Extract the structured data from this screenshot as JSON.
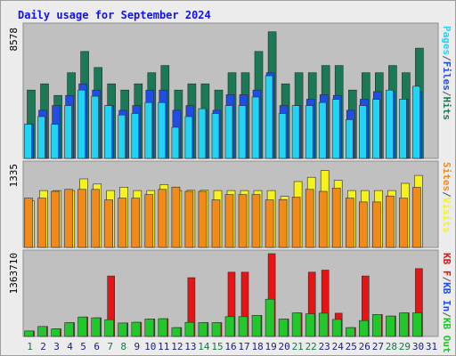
{
  "chart_data": [
    {
      "type": "bar",
      "title": "Daily usage for September 2024",
      "ylabel_parts": [
        "Pages",
        "/",
        "Files",
        "/",
        "Hits"
      ],
      "ymax_label": "8578",
      "ylim": [
        0,
        8578
      ],
      "categories": [
        "1",
        "2",
        "3",
        "4",
        "5",
        "6",
        "7",
        "8",
        "9",
        "10",
        "11",
        "12",
        "13",
        "14",
        "15",
        "16",
        "17",
        "18",
        "19",
        "20",
        "21",
        "22",
        "23",
        "24",
        "25",
        "26",
        "27",
        "28",
        "29",
        "30",
        "31"
      ],
      "series": [
        {
          "name": "Hits",
          "values": [
            4452,
            4858,
            4102,
            5584,
            6969,
            5922,
            4858,
            4452,
            4858,
            5584,
            6053,
            4452,
            4858,
            4858,
            4452,
            5584,
            5584,
            6969,
            8250,
            4858,
            5584,
            5584,
            6053,
            6053,
            4452,
            5584,
            5584,
            6053,
            5584,
            7183,
            0
          ]
        },
        {
          "name": "Files",
          "values": [
            2228,
            3135,
            3441,
            4102,
            4858,
            4452,
            3441,
            3135,
            3441,
            4452,
            4452,
            3135,
            3441,
            3135,
            3135,
            4152,
            4152,
            4452,
            5584,
            3441,
            3441,
            3852,
            4152,
            4102,
            3135,
            3852,
            4352,
            4352,
            3852,
            4352,
            0
          ]
        },
        {
          "name": "Pages",
          "values": [
            2228,
            2723,
            2228,
            3441,
            4452,
            4052,
            3441,
            2828,
            2928,
            3641,
            3641,
            2028,
            2723,
            3241,
            2928,
            3441,
            3441,
            4002,
            5384,
            2928,
            3441,
            3441,
            3641,
            3841,
            2528,
            3441,
            3841,
            4452,
            3852,
            4702,
            0
          ]
        }
      ]
    },
    {
      "type": "bar",
      "ylabel_parts": [
        "Sites",
        "/",
        "Visits"
      ],
      "ymax_label": "1335",
      "ylim": [
        0,
        1335
      ],
      "categories": [
        "1",
        "2",
        "3",
        "4",
        "5",
        "6",
        "7",
        "8",
        "9",
        "10",
        "11",
        "12",
        "13",
        "14",
        "15",
        "16",
        "17",
        "18",
        "19",
        "20",
        "21",
        "22",
        "23",
        "24",
        "25",
        "26",
        "27",
        "28",
        "29",
        "30",
        "31"
      ],
      "series": [
        {
          "name": "Visits",
          "values": [
            751,
            917,
            917,
            917,
            1105,
            1022,
            917,
            972,
            917,
            917,
            1013,
            917,
            922,
            922,
            917,
            917,
            917,
            917,
            917,
            822,
            1062,
            1131,
            1241,
            1083,
            917,
            917,
            917,
            917,
            1033,
            1162,
            0
          ]
        },
        {
          "name": "Sites",
          "values": [
            795,
            795,
            905,
            936,
            936,
            936,
            767,
            795,
            795,
            853,
            936,
            973,
            905,
            905,
            767,
            853,
            853,
            853,
            767,
            773,
            811,
            936,
            905,
            957,
            795,
            733,
            733,
            829,
            795,
            969,
            0
          ]
        }
      ]
    },
    {
      "type": "bar",
      "ylabel_parts": [
        "KB F",
        "/",
        "KB In",
        "/",
        "KB Out"
      ],
      "ymax_label": "1363710",
      "ylim": [
        0,
        1363710
      ],
      "categories": [
        "1",
        "2",
        "3",
        "4",
        "5",
        "6",
        "7",
        "8",
        "9",
        "10",
        "11",
        "12",
        "13",
        "14",
        "15",
        "16",
        "17",
        "18",
        "19",
        "20",
        "21",
        "22",
        "23",
        "24",
        "25",
        "26",
        "27",
        "28",
        "29",
        "30",
        "31"
      ],
      "series": [
        {
          "name": "KB F",
          "values": [
            89599,
            164759,
            124959,
            227961,
            320359,
            306559,
            994979,
            220799,
            233559,
            287559,
            291559,
            144559,
            967199,
            227961,
            227961,
            1057978,
            1057978,
            347358,
            1363710,
            285559,
            386560,
            1057978,
            1092279,
            382160,
            144559,
            994979,
            362559,
            335560,
            386560,
            1117398,
            0
          ]
        },
        {
          "name": "KB In",
          "values": [
            0,
            0,
            0,
            0,
            0,
            0,
            0,
            0,
            0,
            0,
            0,
            0,
            0,
            0,
            0,
            0,
            0,
            0,
            0,
            0,
            0,
            0,
            0,
            0,
            0,
            0,
            0,
            0,
            0,
            0,
            0
          ]
        },
        {
          "name": "KB Out",
          "values": [
            89599,
            164759,
            124959,
            227961,
            320359,
            306559,
            275559,
            220799,
            233559,
            287559,
            291559,
            144559,
            231559,
            227961,
            227961,
            325559,
            325559,
            347358,
            612510,
            285559,
            386560,
            372160,
            382160,
            280559,
            144559,
            261559,
            362559,
            335560,
            386560,
            388560,
            0
          ]
        }
      ]
    }
  ],
  "colors": {
    "hits": "#1b7a55",
    "files": "#1f4ee6",
    "pages": "#20d4f4",
    "visits": "#f7f21a",
    "sites": "#f28a1a",
    "kbf": "#e81414",
    "kbin": "#1f4ee6",
    "kbout": "#21c72b",
    "title": "#1111ee",
    "panel_bg": "#c0c0c0",
    "frame_bg": "#ececec",
    "day_weekend": "#117a44",
    "day_weekday": "#1a2080"
  },
  "weekend_days": [
    "1",
    "7",
    "8",
    "14",
    "15",
    "21",
    "22",
    "28",
    "29"
  ]
}
